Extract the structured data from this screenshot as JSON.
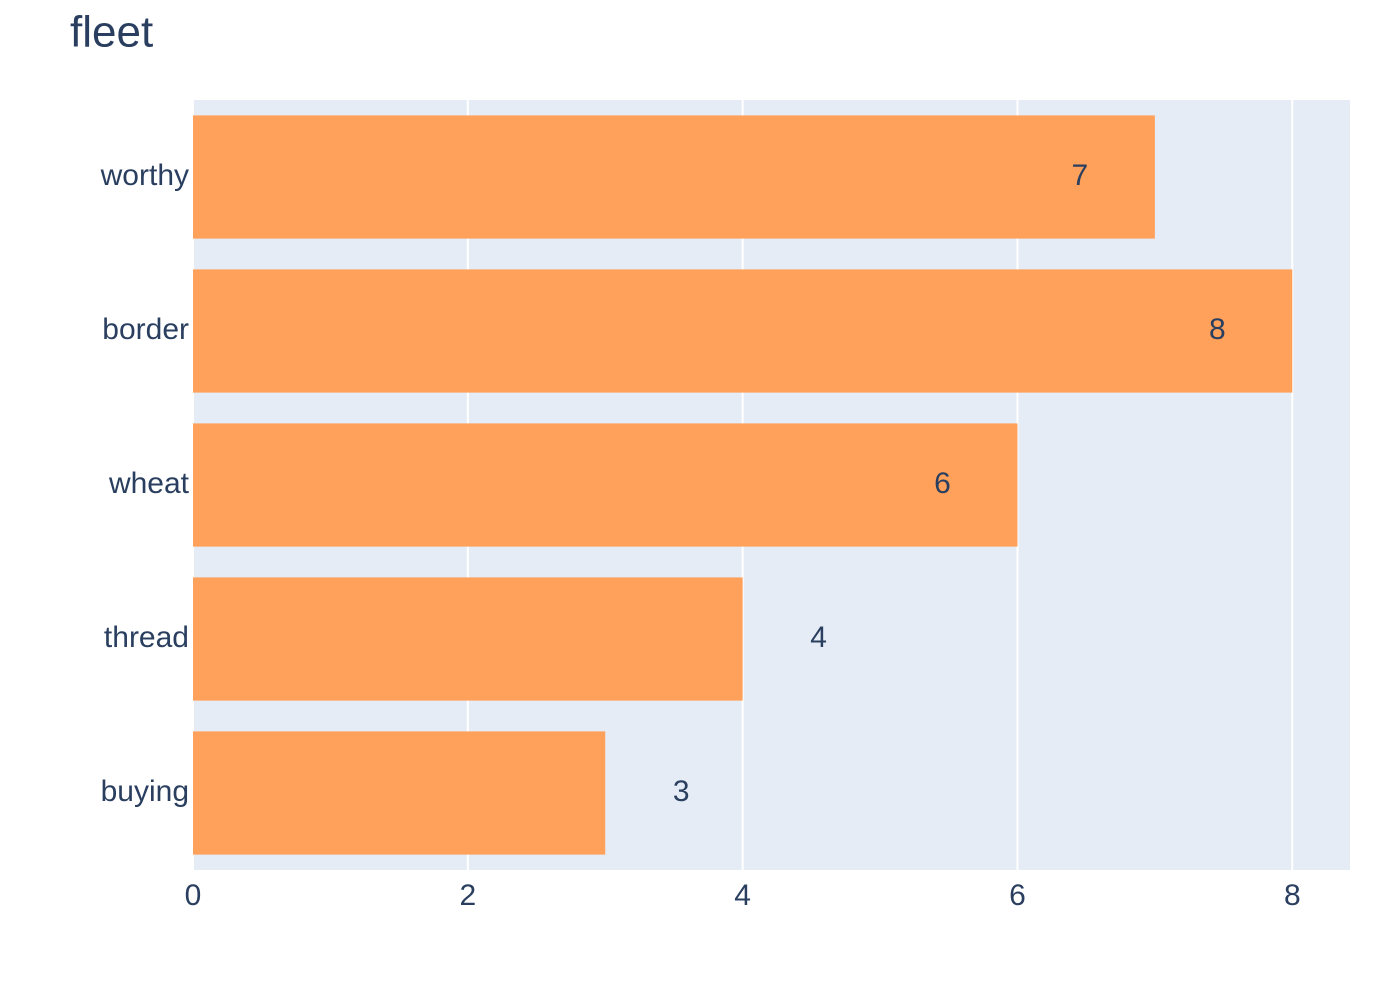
{
  "chart_data": {
    "type": "bar",
    "orientation": "horizontal",
    "title": "fleet",
    "categories": [
      "worthy",
      "border",
      "wheat",
      "thread",
      "buying"
    ],
    "values": [
      7,
      8,
      6,
      4,
      3
    ],
    "color": "#ffa15a",
    "xlim": [
      0,
      8.42
    ],
    "xticks": [
      0,
      2,
      4,
      6,
      8
    ],
    "grid": true
  }
}
